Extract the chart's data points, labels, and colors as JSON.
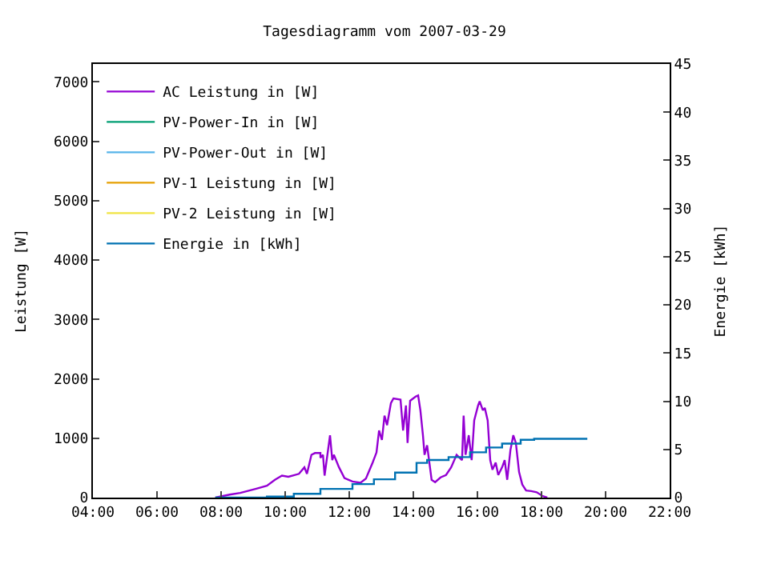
{
  "chart_data": {
    "type": "line",
    "title": "Tagesdiagramm vom 2007-03-29",
    "xlabel": null,
    "ylabel": "Leistung [W]",
    "y2label": "Energie [kWh]",
    "xlim": [
      4,
      22
    ],
    "xticks": [
      {
        "value": 4,
        "label": "04:00"
      },
      {
        "value": 6,
        "label": "06:00"
      },
      {
        "value": 8,
        "label": "08:00"
      },
      {
        "value": 10,
        "label": "10:00"
      },
      {
        "value": 12,
        "label": "12:00"
      },
      {
        "value": 14,
        "label": "14:00"
      },
      {
        "value": 16,
        "label": "16:00"
      },
      {
        "value": 18,
        "label": "18:00"
      },
      {
        "value": 20,
        "label": "20:00"
      },
      {
        "value": 22,
        "label": "22:00"
      }
    ],
    "ylim": [
      0,
      7300
    ],
    "yticks": [
      0,
      1000,
      2000,
      3000,
      4000,
      5000,
      6000,
      7000
    ],
    "y2lim": [
      0,
      45
    ],
    "y2ticks": [
      0,
      5,
      10,
      15,
      20,
      25,
      30,
      35,
      40,
      45
    ],
    "legend": "top left",
    "series": [
      {
        "name": "AC Leistung in [W]",
        "color": "#9400d3",
        "x": [
          7.82,
          8.27,
          8.6,
          9.1,
          9.43,
          9.68,
          9.9,
          10.1,
          10.43,
          10.6,
          10.68,
          10.82,
          10.93,
          11.1,
          11.1,
          11.18,
          11.23,
          11.4,
          11.47,
          11.52,
          11.68,
          11.85,
          12.1,
          12.35,
          12.52,
          12.73,
          12.85,
          12.93,
          13.02,
          13.1,
          13.18,
          13.3,
          13.38,
          13.6,
          13.68,
          13.77,
          13.82,
          13.9,
          14.07,
          14.15,
          14.22,
          14.3,
          14.35,
          14.43,
          14.57,
          14.68,
          14.85,
          15.02,
          15.18,
          15.35,
          15.52,
          15.57,
          15.63,
          15.73,
          15.82,
          15.9,
          16.02,
          16.07,
          16.17,
          16.23,
          16.32,
          16.4,
          16.47,
          16.57,
          16.65,
          16.77,
          16.85,
          16.93,
          17.03,
          17.12,
          17.2,
          17.3,
          17.4,
          17.52,
          17.68,
          17.85,
          18.02,
          18.18
        ],
        "values": [
          0,
          50,
          80,
          150,
          200,
          300,
          370,
          350,
          400,
          510,
          400,
          720,
          750,
          750,
          670,
          720,
          370,
          1050,
          630,
          720,
          510,
          330,
          270,
          250,
          320,
          590,
          760,
          1130,
          970,
          1380,
          1220,
          1590,
          1670,
          1650,
          1130,
          1550,
          920,
          1630,
          1700,
          1720,
          1470,
          1050,
          720,
          880,
          300,
          260,
          340,
          380,
          510,
          720,
          630,
          1380,
          720,
          1050,
          630,
          1300,
          1550,
          1620,
          1470,
          1510,
          1300,
          630,
          470,
          590,
          380,
          510,
          630,
          300,
          800,
          1050,
          920,
          430,
          220,
          120,
          110,
          90,
          30,
          0
        ]
      },
      {
        "name": "PV-Power-In in [W]",
        "color": "#009e73"
      },
      {
        "name": "PV-Power-Out in [W]",
        "color": "#56b4e9"
      },
      {
        "name": "PV-1 Leistung in [W]",
        "color": "#e69f00"
      },
      {
        "name": "PV-2 Leistung in [W]",
        "color": "#f0e442"
      },
      {
        "name": "Energie in [kWh]",
        "type": "step",
        "axis": "y2",
        "color": "#0072b2",
        "x": [
          7.82,
          9.43,
          10.27,
          11.1,
          12.1,
          12.77,
          13.43,
          14.1,
          14.43,
          15.1,
          15.77,
          16.27,
          16.77,
          17.35,
          17.77,
          19.43
        ],
        "values": [
          0,
          0.1,
          0.4,
          0.9,
          1.4,
          1.9,
          2.6,
          3.6,
          3.9,
          4.2,
          4.7,
          5.2,
          5.6,
          6.0,
          6.1,
          6.1
        ]
      }
    ]
  }
}
